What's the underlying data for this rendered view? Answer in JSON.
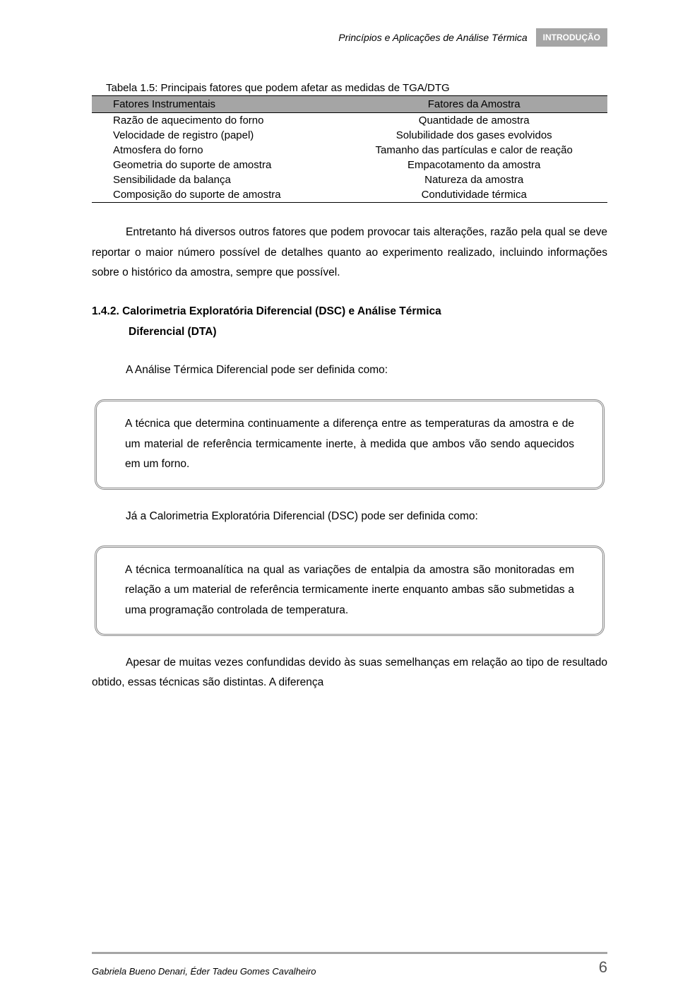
{
  "header": {
    "title": "Princípios e Aplicações de Análise Térmica",
    "tag": "INTRODUÇÃO"
  },
  "table": {
    "caption": "Tabela 1.5: Principais fatores que podem afetar as medidas de TGA/DTG",
    "headers": [
      "Fatores Instrumentais",
      "Fatores da Amostra"
    ],
    "rows": [
      [
        "Razão de aquecimento do forno",
        "Quantidade de amostra"
      ],
      [
        "Velocidade de registro (papel)",
        "Solubilidade dos gases evolvidos"
      ],
      [
        "Atmosfera do forno",
        "Tamanho das partículas e calor de reação"
      ],
      [
        "Geometria do suporte de amostra",
        "Empacotamento da amostra"
      ],
      [
        "Sensibilidade da balança",
        "Natureza da amostra"
      ],
      [
        "Composição do suporte de amostra",
        "Condutividade térmica"
      ]
    ],
    "header_bg": "#a5a5a5",
    "border_color": "#000000",
    "font_size": 15
  },
  "paragraphs": {
    "p1": "Entretanto há diversos outros fatores que podem provocar tais alterações, razão pela qual se deve reportar o maior número possível de detalhes quanto ao experimento realizado, incluindo informações sobre o histórico da amostra, sempre que possível.",
    "heading_num": "1.4.2. Calorimetria Exploratória Diferencial (DSC) e Análise Térmica",
    "heading_sub": "Diferencial (DTA)",
    "p2": "A Análise Térmica Diferencial pode ser definida como:",
    "callout1": "A técnica que determina continuamente a diferença entre as temperaturas da amostra e de um material de referência termicamente inerte, à medida que ambos vão sendo aquecidos em um forno.",
    "p3": "Já a Calorimetria Exploratória Diferencial (DSC) pode ser definida como:",
    "callout2": "A técnica termoanalítica na qual as variações de entalpia da amostra são monitoradas em relação a um material de referência termicamente inerte enquanto ambas são submetidas a uma programação controlada de temperatura.",
    "p4": "Apesar de muitas vezes confundidas devido às suas semelhanças em relação ao tipo de resultado obtido, essas técnicas são distintas. A diferença"
  },
  "footer": {
    "authors": "Gabriela Bueno Denari, Éder Tadeu Gomes Cavalheiro",
    "page": "6"
  },
  "colors": {
    "tag_bg": "#a5a5a5",
    "tag_text": "#ffffff",
    "footer_rule": "#a5a5a5",
    "callout_border": "#888888"
  }
}
